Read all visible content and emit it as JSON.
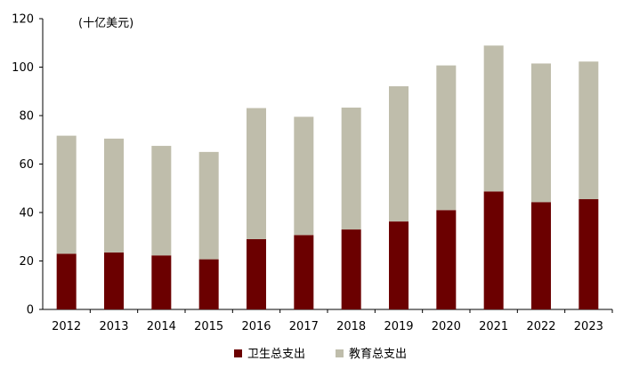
{
  "chart_data": {
    "type": "bar",
    "stacked": true,
    "unit_label": "(十亿美元)",
    "categories": [
      "2012",
      "2013",
      "2014",
      "2015",
      "2016",
      "2017",
      "2018",
      "2019",
      "2020",
      "2021",
      "2022",
      "2023"
    ],
    "series": [
      {
        "name": "卫生总支出",
        "color": "#6b0000",
        "values": [
          23,
          23.5,
          22.3,
          20.7,
          29,
          30.7,
          33,
          36.3,
          41,
          48.7,
          44.3,
          45.5
        ]
      },
      {
        "name": "教育总支出",
        "color": "#bfbdab",
        "values": [
          48.7,
          47,
          45.2,
          44.3,
          54.1,
          48.8,
          50.3,
          55.8,
          59.7,
          60.2,
          57.2,
          56.8
        ]
      }
    ],
    "ylim": [
      0,
      120
    ],
    "yticks": [
      0,
      20,
      40,
      60,
      80,
      100,
      120
    ],
    "grid": false,
    "legend_position": "bottom-center"
  }
}
